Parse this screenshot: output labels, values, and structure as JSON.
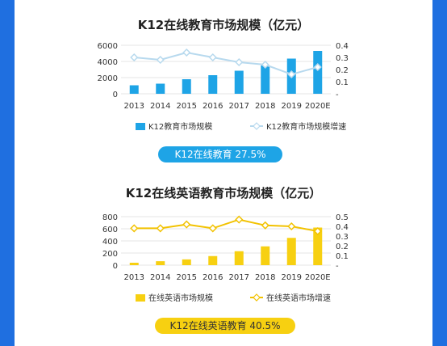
{
  "chart_data": [
    {
      "type": "bar",
      "title": "K12在线教育市场规模（亿元）",
      "categories": [
        "2013",
        "2014",
        "2015",
        "2016",
        "2017",
        "2018",
        "2019",
        "2020E"
      ],
      "series": [
        {
          "name": "K12教育市场规模",
          "type": "bar",
          "axis": "left",
          "values": [
            1050,
            1250,
            1800,
            2300,
            2850,
            3500,
            4350,
            5300
          ]
        },
        {
          "name": "K12教育市场规模增速",
          "type": "line",
          "axis": "right",
          "values": [
            0.3,
            0.28,
            0.34,
            0.3,
            0.26,
            0.24,
            0.16,
            0.22
          ]
        }
      ],
      "y_left": {
        "ylim": [
          0,
          6000
        ],
        "ticks": [
          "0",
          "2000",
          "4000",
          "6000"
        ]
      },
      "y_right": {
        "ylim": [
          0,
          0.4
        ],
        "ticks": [
          "-",
          "0.1",
          "0.2",
          "0.3",
          "0.4"
        ]
      },
      "colors": {
        "bar": "#1ea4e6",
        "line": "#b7d9ee",
        "marker": "#b7d9ee"
      },
      "badge": "K12在线教育 27.5%",
      "legend_position": "bottom"
    },
    {
      "type": "bar",
      "title": "K12在线英语教育市场规模（亿元）",
      "categories": [
        "2013",
        "2014",
        "2015",
        "2016",
        "2017",
        "2018",
        "2019",
        "2020E"
      ],
      "series": [
        {
          "name": "在线英语市场规模",
          "type": "bar",
          "axis": "left",
          "values": [
            40,
            65,
            95,
            150,
            230,
            310,
            450,
            620
          ]
        },
        {
          "name": "在线英语市场增速",
          "type": "line",
          "axis": "right",
          "values": [
            0.38,
            0.38,
            0.42,
            0.38,
            0.47,
            0.41,
            0.4,
            0.35
          ]
        }
      ],
      "y_left": {
        "ylim": [
          0,
          800
        ],
        "ticks": [
          "0",
          "200",
          "400",
          "600",
          "800"
        ]
      },
      "y_right": {
        "ylim": [
          0,
          0.5
        ],
        "ticks": [
          "-",
          "0.1",
          "0.2",
          "0.3",
          "0.4",
          "0.5"
        ]
      },
      "colors": {
        "bar": "#f7d011",
        "line": "#f2c200",
        "marker": "#f2c200"
      },
      "badge": "K12在线英语教育 40.5%",
      "legend_position": "bottom"
    }
  ]
}
